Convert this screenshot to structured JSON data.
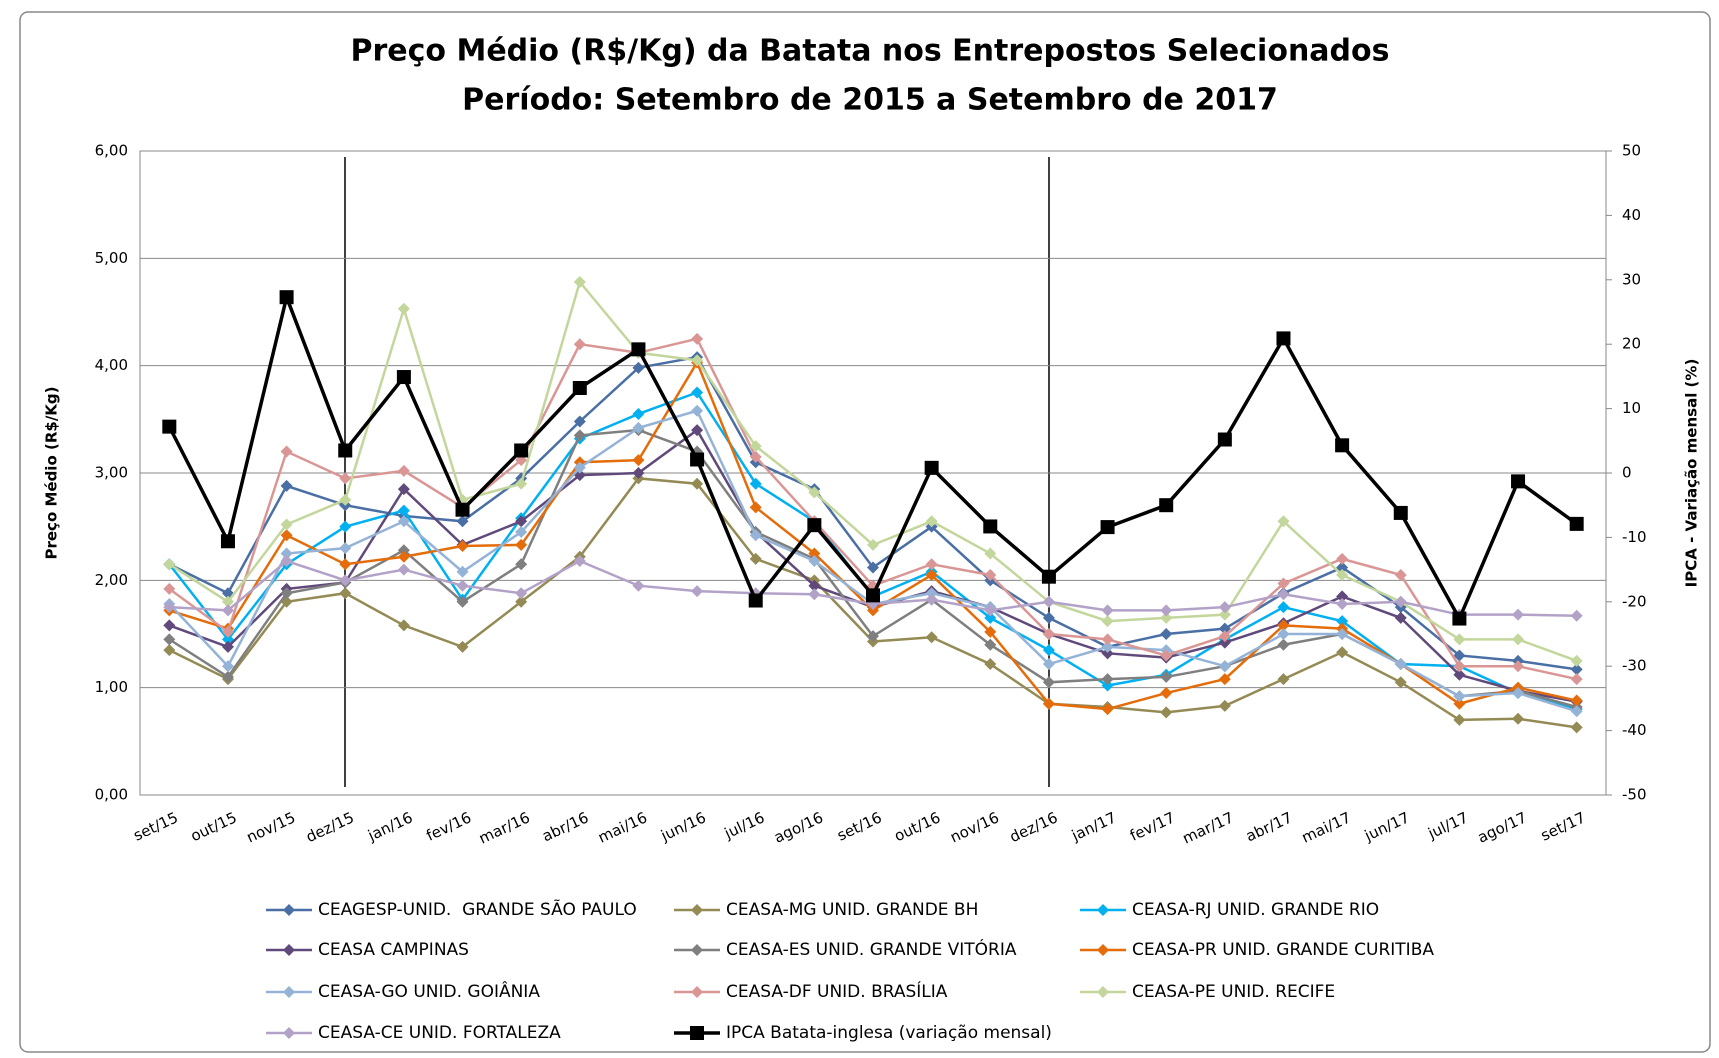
{
  "chart_data": {
    "type": "line",
    "title": "Preço Médio (R$/Kg) da Batata nos Entrepostos Selecionados",
    "subtitle": "Período: Setembro de 2015 a Setembro de 2017",
    "y_label": "Preço Médio (R$/Kg)",
    "y2_label": "IPCA - Variação mensal (%)",
    "categories": [
      "set/15",
      "out/15",
      "nov/15",
      "dez/15",
      "jan/16",
      "fev/16",
      "mar/16",
      "abr/16",
      "mai/16",
      "jun/16",
      "jul/16",
      "ago/16",
      "set/16",
      "out/16",
      "nov/16",
      "dez/16",
      "jan/17",
      "fev/17",
      "mar/17",
      "abr/17",
      "mai/17",
      "jun/17",
      "jul/17",
      "ago/17",
      "set/17"
    ],
    "ylim": [
      0,
      6
    ],
    "yticks": [
      {
        "value": 0,
        "label": "0,00"
      },
      {
        "value": 1,
        "label": "1,00"
      },
      {
        "value": 2,
        "label": "2,00"
      },
      {
        "value": 3,
        "label": "3,00"
      },
      {
        "value": 4,
        "label": "4,00"
      },
      {
        "value": 5,
        "label": "5,00"
      },
      {
        "value": 6,
        "label": "6,00"
      }
    ],
    "y2lim": [
      -50,
      50
    ],
    "y2ticks": [
      -50,
      -40,
      -30,
      -20,
      -10,
      0,
      10,
      20,
      30,
      40,
      50
    ],
    "grid": true,
    "legend": "bottom",
    "series": [
      {
        "name": "CEAGESP-UNID.  GRANDE SÃO PAULO",
        "color": "#4a6fa5",
        "marker": "diamond",
        "values": [
          2.15,
          1.88,
          2.88,
          2.7,
          2.6,
          2.55,
          2.95,
          3.48,
          3.98,
          4.08,
          3.1,
          2.85,
          2.12,
          2.5,
          2.0,
          1.65,
          1.38,
          1.5,
          1.55,
          1.88,
          2.12,
          1.75,
          1.3,
          1.25,
          1.17
        ]
      },
      {
        "name": "CEASA-MG UNID. GRANDE BH",
        "color": "#948a54",
        "marker": "diamond",
        "values": [
          1.35,
          1.08,
          1.8,
          1.88,
          1.58,
          1.38,
          1.8,
          2.22,
          2.95,
          2.9,
          2.2,
          2.0,
          1.43,
          1.47,
          1.22,
          0.85,
          0.82,
          0.77,
          0.83,
          1.08,
          1.33,
          1.05,
          0.7,
          0.71,
          0.63
        ]
      },
      {
        "name": "CEASA-RJ UNID. GRANDE RIO",
        "color": "#00b0f0",
        "marker": "diamond",
        "values": [
          2.15,
          1.45,
          2.15,
          2.5,
          2.65,
          1.82,
          2.58,
          3.32,
          3.55,
          3.75,
          2.9,
          2.55,
          1.85,
          2.08,
          1.65,
          1.35,
          1.02,
          1.12,
          1.45,
          1.75,
          1.62,
          1.22,
          1.2,
          0.95,
          0.8
        ]
      },
      {
        "name": "CEASA CAMPINAS",
        "color": "#604a7b",
        "marker": "diamond",
        "values": [
          1.58,
          1.38,
          1.92,
          1.98,
          2.85,
          2.33,
          2.55,
          2.98,
          3.0,
          3.4,
          2.45,
          1.95,
          1.75,
          1.9,
          1.75,
          1.5,
          1.32,
          1.28,
          1.42,
          1.6,
          1.85,
          1.65,
          1.12,
          0.97,
          0.87
        ]
      },
      {
        "name": "CEASA-ES UNID. GRANDE VITÓRIA",
        "color": "#7f7f7f",
        "marker": "diamond",
        "values": [
          1.45,
          1.1,
          1.88,
          1.98,
          2.28,
          1.8,
          2.15,
          3.35,
          3.4,
          3.2,
          2.45,
          2.2,
          1.48,
          1.82,
          1.4,
          1.05,
          1.08,
          1.1,
          1.2,
          1.4,
          1.5,
          1.22,
          0.92,
          0.97,
          0.82
        ]
      },
      {
        "name": "CEASA-PR UNID. GRANDE CURITIBA",
        "color": "#e46c0a",
        "marker": "diamond",
        "values": [
          1.72,
          1.55,
          2.42,
          2.15,
          2.22,
          2.32,
          2.33,
          3.1,
          3.12,
          4.03,
          2.68,
          2.25,
          1.72,
          2.05,
          1.52,
          0.85,
          0.8,
          0.95,
          1.08,
          1.58,
          1.55,
          1.22,
          0.85,
          1.0,
          0.88
        ]
      },
      {
        "name": "CEASA-GO UNID. GOIÂNIA",
        "color": "#95b3d7",
        "marker": "diamond",
        "values": [
          1.78,
          1.2,
          2.25,
          2.3,
          2.55,
          2.08,
          2.45,
          3.05,
          3.42,
          3.58,
          2.42,
          2.18,
          1.78,
          1.88,
          1.75,
          1.22,
          1.38,
          1.35,
          1.2,
          1.5,
          1.5,
          1.22,
          0.92,
          0.95,
          0.78
        ]
      },
      {
        "name": "CEASA-DF UNID. BRASÍLIA",
        "color": "#d99694",
        "marker": "diamond",
        "values": [
          1.92,
          1.52,
          3.2,
          2.95,
          3.02,
          2.68,
          3.12,
          4.2,
          4.12,
          4.25,
          3.15,
          2.55,
          1.95,
          2.15,
          2.05,
          1.5,
          1.45,
          1.3,
          1.48,
          1.97,
          2.2,
          2.05,
          1.2,
          1.2,
          1.08
        ]
      },
      {
        "name": "CEASA-PE UNID. RECIFE",
        "color": "#c3d69b",
        "marker": "diamond",
        "values": [
          2.15,
          1.8,
          2.52,
          2.75,
          4.53,
          2.75,
          2.9,
          4.78,
          4.12,
          4.05,
          3.25,
          2.82,
          2.33,
          2.55,
          2.25,
          1.8,
          1.62,
          1.65,
          1.68,
          2.55,
          2.05,
          1.8,
          1.45,
          1.45,
          1.25
        ]
      },
      {
        "name": "CEASA-CE UNID. FORTALEZA",
        "color": "#b3a2c7",
        "marker": "diamond",
        "values": [
          1.75,
          1.72,
          2.18,
          2.0,
          2.1,
          1.95,
          1.88,
          2.18,
          1.95,
          1.9,
          1.88,
          1.87,
          1.78,
          1.82,
          1.72,
          1.8,
          1.72,
          1.72,
          1.75,
          1.87,
          1.78,
          1.8,
          1.68,
          1.68,
          1.67
        ]
      },
      {
        "name": "IPCA Batata-inglesa (variação mensal)",
        "color": "#000000",
        "marker": "square",
        "axis": "y2",
        "values": [
          7.2,
          -10.6,
          27.3,
          3.5,
          14.9,
          -5.7,
          3.5,
          13.2,
          19.2,
          2.1,
          -19.8,
          -8.1,
          -19.0,
          0.8,
          -8.3,
          -16.1,
          -8.4,
          -5.0,
          5.2,
          20.9,
          4.3,
          -6.2,
          -22.6,
          -1.3,
          -7.9
        ]
      }
    ]
  }
}
